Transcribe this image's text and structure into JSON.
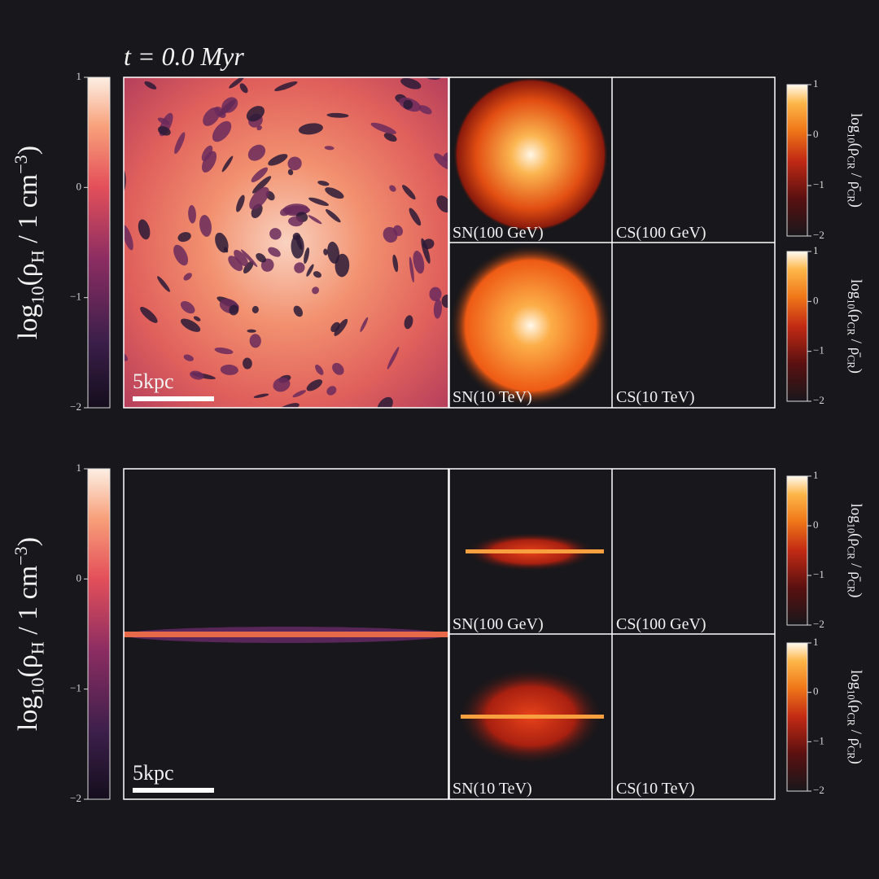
{
  "title": "t = 0.0 Myr",
  "rows": [
    {
      "density_colorbar": {
        "label": [
          "log",
          "10",
          "(ρ",
          "H",
          " / 1 cm",
          "−3",
          ")"
        ],
        "lim": [
          -2,
          1
        ],
        "ticks": [
          1,
          0,
          {
            "value": -1,
            "label": "−1"
          },
          {
            "value": -2,
            "label": "−2"
          }
        ]
      },
      "scale_bar": "5kpc",
      "panels": [
        "SN(100 GeV)",
        "CS(100 GeV)",
        "SN(10 TeV)",
        "CS(10 TeV)"
      ],
      "cr_colorbars": [
        {
          "label": [
            "log",
            "10",
            "(ρ",
            "CR",
            " / ρ̄",
            "CR",
            ")"
          ],
          "lim": [
            -2,
            1
          ],
          "ticks": [
            1,
            0,
            {
              "value": -1,
              "label": "−1"
            },
            {
              "value": -2,
              "label": "−2"
            }
          ]
        },
        {
          "label": [
            "log",
            "10",
            "(ρ",
            "CR",
            " / ρ̄",
            "CR",
            ")"
          ],
          "lim": [
            -2,
            1
          ],
          "ticks": [
            1,
            0,
            {
              "value": -1,
              "label": "−1"
            },
            {
              "value": -2,
              "label": "−2"
            }
          ]
        }
      ]
    },
    {
      "density_colorbar": {
        "label": [
          "log",
          "10",
          "(ρ",
          "H",
          " / 1 cm",
          "−3",
          ")"
        ],
        "lim": [
          -2,
          1
        ],
        "ticks": [
          1,
          0,
          {
            "value": -1,
            "label": "−1"
          },
          {
            "value": -2,
            "label": "−2"
          }
        ]
      },
      "scale_bar": "5kpc",
      "panels": [
        "SN(100 GeV)",
        "CS(100 GeV)",
        "SN(10 TeV)",
        "CS(10 TeV)"
      ],
      "cr_colorbars": [
        {
          "label": [
            "log",
            "10",
            "(ρ",
            "CR",
            " / ρ̄",
            "CR",
            ")"
          ],
          "lim": [
            -2,
            1
          ],
          "ticks": [
            1,
            0,
            {
              "value": -1,
              "label": "−1"
            },
            {
              "value": -2,
              "label": "−2"
            }
          ]
        },
        {
          "label": [
            "log",
            "10",
            "(ρ",
            "CR",
            " / ρ̄",
            "CR",
            ")"
          ],
          "lim": [
            -2,
            1
          ],
          "ticks": [
            1,
            0,
            {
              "value": -1,
              "label": "−1"
            },
            {
              "value": -2,
              "label": "−2"
            }
          ]
        }
      ]
    }
  ]
}
